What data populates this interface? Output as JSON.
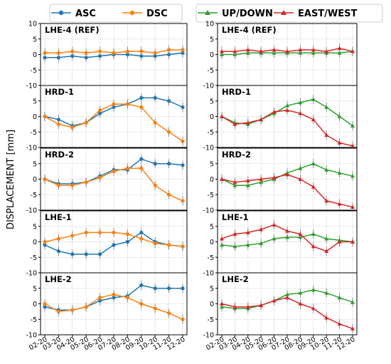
{
  "figure": {
    "ylabel": "DISPLACEMENT [mm]",
    "x_ticks": [
      "02-20",
      "03-20",
      "04-20",
      "05-20",
      "06-20",
      "07-20",
      "08-20",
      "09-20",
      "10-20",
      "11-20",
      "12-20"
    ],
    "y_ticks": [
      10,
      5,
      0,
      -5,
      -10
    ],
    "grid": true,
    "ylim": [
      -10,
      10
    ],
    "legends": [
      {
        "column": "left",
        "placement": "top",
        "entries": [
          {
            "name": "ASC",
            "color": "#1f77b4"
          },
          {
            "name": "DSC",
            "color": "#ff7f0e"
          }
        ]
      },
      {
        "column": "right",
        "placement": "top",
        "entries": [
          {
            "name": "UP/DOWN",
            "color": "#2ca02c"
          },
          {
            "name": "EAST/WEST",
            "color": "#d62728"
          }
        ]
      }
    ]
  },
  "chart_data": {
    "type": "line",
    "x": [
      "02-20",
      "03-20",
      "04-20",
      "05-20",
      "06-20",
      "07-20",
      "08-20",
      "09-20",
      "10-20",
      "11-20",
      "12-20"
    ],
    "x_range": [
      "02-20",
      "12-20"
    ],
    "ylim": [
      -10,
      10
    ],
    "panels": [
      {
        "column": "left",
        "title": "LHE-4 (REF)",
        "series": [
          {
            "name": "ASC",
            "color": "#1f77b4",
            "values": [
              -1.0,
              -1.0,
              -0.5,
              -1.0,
              -0.5,
              0.0,
              0.0,
              -0.5,
              -0.5,
              0.0,
              0.5
            ]
          },
          {
            "name": "DSC",
            "color": "#ff7f0e",
            "values": [
              0.5,
              0.5,
              1.0,
              0.5,
              1.0,
              0.5,
              1.0,
              1.0,
              0.5,
              1.5,
              1.5
            ]
          }
        ]
      },
      {
        "column": "left",
        "title": "HRD-1",
        "series": [
          {
            "name": "ASC",
            "color": "#1f77b4",
            "values": [
              0.0,
              -1.0,
              -3.0,
              -2.0,
              1.0,
              3.0,
              4.0,
              6.0,
              6.0,
              5.0,
              3.0
            ]
          },
          {
            "name": "DSC",
            "color": "#ff7f0e",
            "values": [
              0.0,
              -2.5,
              -3.5,
              -2.0,
              2.0,
              4.0,
              4.0,
              3.0,
              -2.0,
              -5.0,
              -8.0
            ]
          }
        ]
      },
      {
        "column": "left",
        "title": "HRD-2",
        "series": [
          {
            "name": "ASC",
            "color": "#1f77b4",
            "values": [
              0.0,
              -1.5,
              -1.5,
              -1.0,
              1.0,
              3.0,
              3.0,
              6.5,
              5.0,
              5.0,
              4.5
            ]
          },
          {
            "name": "DSC",
            "color": "#ff7f0e",
            "values": [
              0.0,
              -2.0,
              -2.0,
              -1.0,
              0.5,
              2.5,
              3.5,
              3.5,
              -2.0,
              -5.0,
              -7.0
            ]
          }
        ]
      },
      {
        "column": "left",
        "title": "LHE-1",
        "series": [
          {
            "name": "ASC",
            "color": "#1f77b4",
            "values": [
              -1.0,
              -3.0,
              -4.0,
              -4.0,
              -4.0,
              -1.0,
              0.0,
              3.0,
              0.0,
              -1.0,
              -1.5
            ]
          },
          {
            "name": "DSC",
            "color": "#ff7f0e",
            "values": [
              0.0,
              1.0,
              2.0,
              3.0,
              3.0,
              3.0,
              2.5,
              1.0,
              -0.5,
              -1.0,
              -1.5
            ]
          }
        ]
      },
      {
        "column": "left",
        "title": "LHE-2",
        "series": [
          {
            "name": "ASC",
            "color": "#1f77b4",
            "values": [
              -1.0,
              -2.0,
              -2.0,
              -1.0,
              1.0,
              2.0,
              2.5,
              6.0,
              5.0,
              5.0,
              5.0
            ]
          },
          {
            "name": "DSC",
            "color": "#ff7f0e",
            "values": [
              0.0,
              -2.5,
              -2.0,
              -1.0,
              2.0,
              3.0,
              2.0,
              0.0,
              -1.5,
              -3.0,
              -5.0
            ]
          }
        ]
      },
      {
        "column": "right",
        "title": "LHE-4 (REF)",
        "series": [
          {
            "name": "UP/DOWN",
            "color": "#2ca02c",
            "values": [
              0.0,
              0.0,
              0.5,
              0.5,
              0.5,
              0.5,
              0.5,
              0.5,
              0.5,
              0.5,
              1.0
            ]
          },
          {
            "name": "EAST/WEST",
            "color": "#d62728",
            "values": [
              1.0,
              1.0,
              1.5,
              1.0,
              1.5,
              1.0,
              1.5,
              1.5,
              1.0,
              2.0,
              1.0
            ]
          }
        ]
      },
      {
        "column": "right",
        "title": "HRD-1",
        "series": [
          {
            "name": "UP/DOWN",
            "color": "#2ca02c",
            "values": [
              0.0,
              -2.0,
              -2.5,
              -1.0,
              1.0,
              3.5,
              4.5,
              5.5,
              3.0,
              0.0,
              -3.0
            ]
          },
          {
            "name": "EAST/WEST",
            "color": "#d62728",
            "values": [
              0.0,
              -2.5,
              -2.0,
              -1.0,
              1.5,
              2.0,
              1.0,
              -1.0,
              -6.0,
              -8.5,
              -9.5
            ]
          }
        ]
      },
      {
        "column": "right",
        "title": "HRD-2",
        "series": [
          {
            "name": "UP/DOWN",
            "color": "#2ca02c",
            "values": [
              0.0,
              -2.0,
              -2.0,
              -1.0,
              0.0,
              2.0,
              3.5,
              5.0,
              3.0,
              2.0,
              1.0
            ]
          },
          {
            "name": "EAST/WEST",
            "color": "#d62728",
            "values": [
              0.0,
              -1.0,
              -0.5,
              0.0,
              0.5,
              1.5,
              0.0,
              -2.5,
              -7.0,
              -8.0,
              -9.0
            ]
          }
        ]
      },
      {
        "column": "right",
        "title": "LHE-1",
        "series": [
          {
            "name": "UP/DOWN",
            "color": "#2ca02c",
            "values": [
              -1.0,
              -1.5,
              -1.0,
              -0.5,
              1.0,
              1.5,
              1.5,
              2.5,
              1.0,
              0.5,
              0.0
            ]
          },
          {
            "name": "EAST/WEST",
            "color": "#d62728",
            "values": [
              1.0,
              2.5,
              3.0,
              4.0,
              5.5,
              3.5,
              2.5,
              -1.5,
              -3.0,
              0.0,
              0.0
            ]
          }
        ]
      },
      {
        "column": "right",
        "title": "LHE-2",
        "series": [
          {
            "name": "UP/DOWN",
            "color": "#2ca02c",
            "values": [
              -1.0,
              -1.5,
              -1.5,
              -0.5,
              1.0,
              3.0,
              3.5,
              4.5,
              3.5,
              2.0,
              0.5
            ]
          },
          {
            "name": "EAST/WEST",
            "color": "#d62728",
            "values": [
              0.0,
              -1.0,
              -1.0,
              -0.5,
              1.0,
              2.0,
              0.0,
              -1.5,
              -4.5,
              -6.5,
              -8.0
            ]
          }
        ]
      }
    ]
  }
}
